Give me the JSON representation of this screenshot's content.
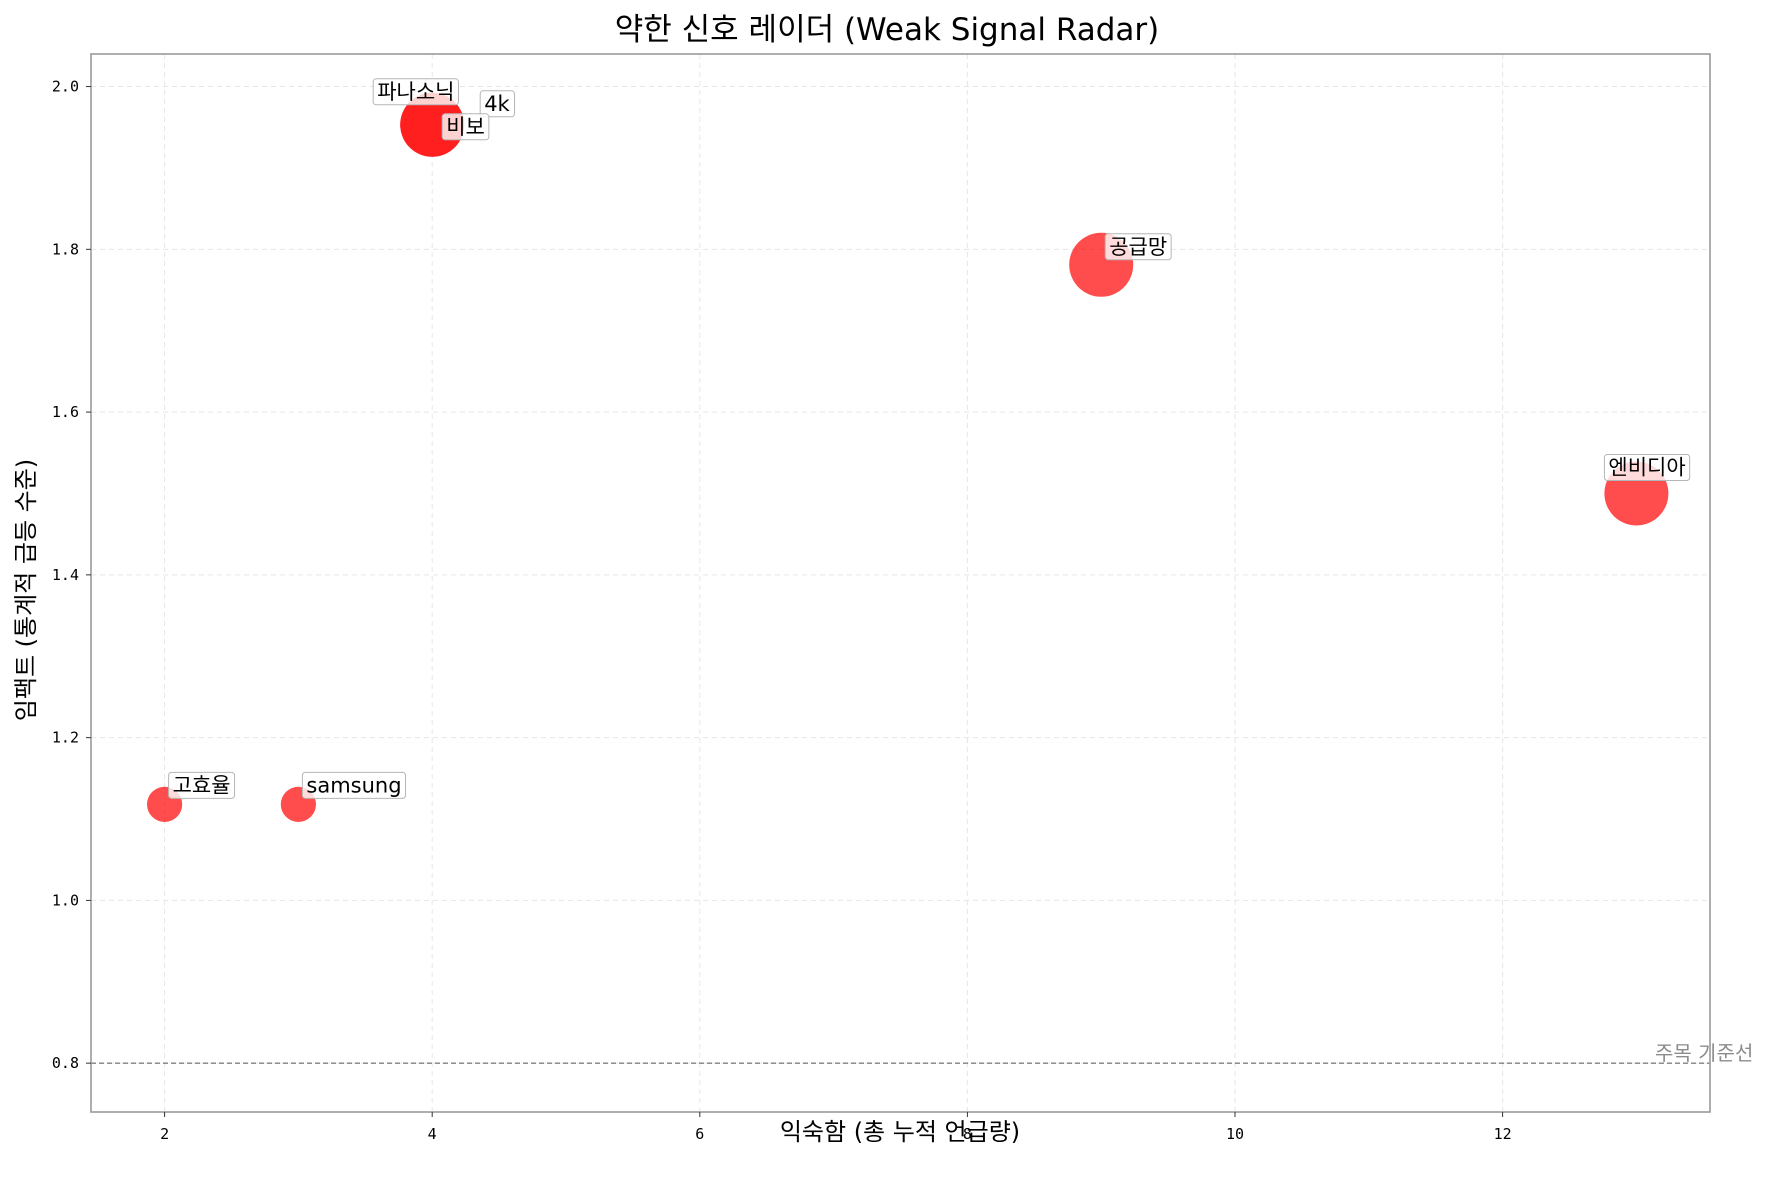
{
  "chart_data": {
    "type": "scatter",
    "title": "약한 신호 레이더 (Weak Signal Radar)",
    "xlabel": "익숙함 (총 누적 언급량)",
    "ylabel": "임팩트 (통계적 급등 수준)",
    "xlim": [
      1.45,
      13.55
    ],
    "ylim": [
      0.74,
      2.04
    ],
    "x_ticks": [
      2,
      4,
      6,
      8,
      10,
      12
    ],
    "y_ticks": [
      0.8,
      1.0,
      1.2,
      1.4,
      1.6,
      1.8,
      2.0
    ],
    "y_tick_labels": [
      "0.8",
      "1.0",
      "1.2",
      "1.4",
      "1.6",
      "1.8",
      "2.0"
    ],
    "grid": true,
    "threshold": {
      "y": 0.8,
      "label": "주목 기준선",
      "color": "#808080"
    },
    "point_color": "#ff0000",
    "points": [
      {
        "label": "파나소닉",
        "x": 4,
        "y": 1.953,
        "size": 1.0
      },
      {
        "label": "4k",
        "x": 4,
        "y": 1.953,
        "size": 1.0
      },
      {
        "label": "비보",
        "x": 4,
        "y": 1.953,
        "size": 1.0
      },
      {
        "label": "공급망",
        "x": 9,
        "y": 1.781,
        "size": 1.0
      },
      {
        "label": "엔비디아",
        "x": 13,
        "y": 1.5,
        "size": 1.0
      },
      {
        "label": "고효율",
        "x": 2,
        "y": 1.118,
        "size": 0.28
      },
      {
        "label": "samsung",
        "x": 3,
        "y": 1.118,
        "size": 0.28
      }
    ]
  }
}
